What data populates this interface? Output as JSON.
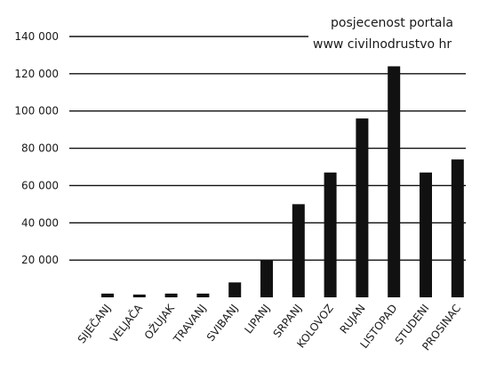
{
  "chart_data": {
    "type": "bar",
    "title": "posjecenost portala",
    "subtitle": "www civilnodrustvo hr",
    "xlabel": "",
    "ylabel": "",
    "categories": [
      "SIJEČANJ",
      "VELJAČA",
      "OŽUJAK",
      "TRAVANJ",
      "SVIBANJ",
      "LIPANJ",
      "SRPANJ",
      "KOLOVOZ",
      "RUJAN",
      "LISTOPAD",
      "STUDENI",
      "PROSINAC"
    ],
    "values": [
      2000,
      1500,
      2000,
      2000,
      8000,
      20000,
      50000,
      67000,
      96000,
      124000,
      67000,
      74000
    ],
    "ylim": [
      0,
      140000
    ],
    "yticks": [
      20000,
      40000,
      60000,
      80000,
      100000,
      120000,
      140000
    ],
    "ytick_labels": [
      "20 000",
      "40 000",
      "60 000",
      "80 000",
      "100 000",
      "120 000",
      "140 000"
    ],
    "grid": "horizontal",
    "bar_color": "#111111",
    "grid_color": "#111111"
  }
}
